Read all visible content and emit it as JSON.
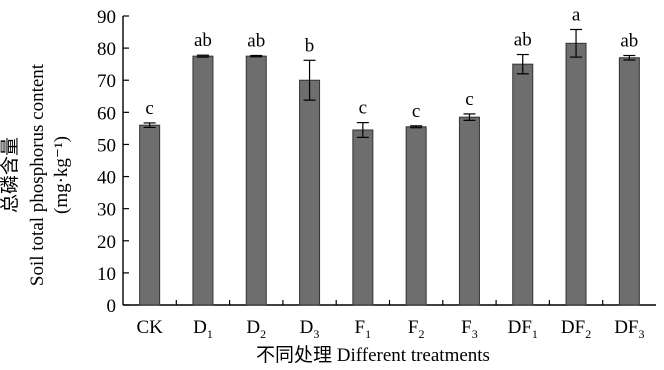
{
  "chart_data": {
    "type": "bar",
    "xlabel": "不同处理 Different treatments",
    "ylabel_cn": "总磷含量",
    "ylabel_en": "Soil total phosphorus content",
    "ylabel_unit": "(mg·kg⁻¹)",
    "ylim": [
      0,
      90
    ],
    "yticks": [
      0,
      10,
      20,
      30,
      40,
      50,
      60,
      70,
      80,
      90
    ],
    "categories": [
      {
        "base": "CK",
        "sub": ""
      },
      {
        "base": "D",
        "sub": "1"
      },
      {
        "base": "D",
        "sub": "2"
      },
      {
        "base": "D",
        "sub": "3"
      },
      {
        "base": "F",
        "sub": "1"
      },
      {
        "base": "F",
        "sub": "2"
      },
      {
        "base": "F",
        "sub": "3"
      },
      {
        "base": "DF",
        "sub": "1"
      },
      {
        "base": "DF",
        "sub": "2"
      },
      {
        "base": "DF",
        "sub": "3"
      }
    ],
    "values": [
      56,
      77.5,
      77.5,
      70,
      54.5,
      55.5,
      58.5,
      75,
      81.5,
      77
    ],
    "errors": [
      0.7,
      0.3,
      0.2,
      6.2,
      2.3,
      0.3,
      1,
      3,
      4.3,
      0.7
    ],
    "significance": [
      "c",
      "ab",
      "ab",
      "b",
      "c",
      "c",
      "c",
      "ab",
      "a",
      "ab"
    ],
    "bar_color": "#6e6e6e",
    "grid": false
  }
}
